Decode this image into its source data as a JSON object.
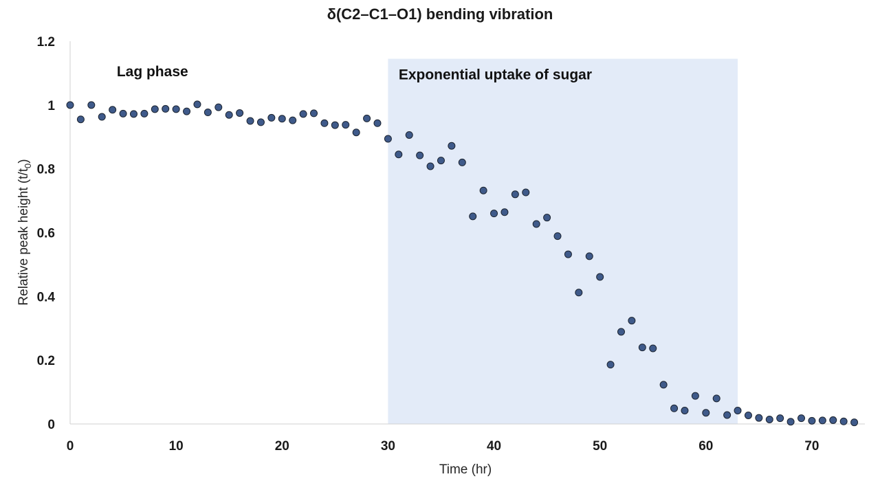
{
  "chart_data": {
    "type": "scatter",
    "title": "δ(C2–C1–O1) bending vibration",
    "xlabel": "Time (hr)",
    "ylabel": "Relative peak height (t/t",
    "ylabel_sub": "0",
    "ylabel_close": ")",
    "xlim": [
      0,
      75
    ],
    "ylim": [
      0,
      1.2
    ],
    "x_ticks": [
      0,
      10,
      20,
      30,
      40,
      50,
      60,
      70
    ],
    "y_ticks": [
      0,
      0.2,
      0.4,
      0.6,
      0.8,
      1,
      1.2
    ],
    "y_tick_labels": [
      "0",
      "0.2",
      "0.4",
      "0.6",
      "0.8",
      "1",
      "1.2"
    ],
    "grid": false,
    "legend": "none",
    "marker_color": "#3f5a8a",
    "annotations": [
      {
        "text": "Lag phase",
        "x": 4.4,
        "y": 1.09
      },
      {
        "text": "Exponential uptake of sugar",
        "x": 31.0,
        "y": 1.08
      }
    ],
    "shaded_region": {
      "x_start": 30,
      "x_end": 63,
      "y_top": 1.145,
      "color": "#e3ebf8"
    },
    "series": [
      {
        "name": "δ(C2–C1–O1)",
        "x": [
          0,
          1,
          2,
          3,
          4,
          5,
          6,
          7,
          8,
          9,
          10,
          11,
          12,
          13,
          14,
          15,
          16,
          17,
          18,
          19,
          20,
          21,
          22,
          23,
          24,
          25,
          26,
          27,
          28,
          29,
          30,
          31,
          32,
          33,
          34,
          35,
          36,
          37,
          38,
          39,
          40,
          41,
          42,
          43,
          44,
          45,
          46,
          47,
          48,
          49,
          50,
          51,
          52,
          53,
          54,
          55,
          56,
          57,
          58,
          59,
          60,
          61,
          62,
          63,
          64,
          65,
          66,
          67,
          68,
          69,
          70,
          71,
          72,
          73,
          74
        ],
        "y": [
          1.0,
          0.955,
          1.0,
          0.963,
          0.985,
          0.973,
          0.972,
          0.973,
          0.987,
          0.988,
          0.987,
          0.98,
          1.002,
          0.977,
          0.993,
          0.969,
          0.975,
          0.95,
          0.946,
          0.96,
          0.957,
          0.952,
          0.972,
          0.974,
          0.943,
          0.937,
          0.938,
          0.914,
          0.958,
          0.943,
          0.894,
          0.845,
          0.906,
          0.842,
          0.808,
          0.826,
          0.872,
          0.82,
          0.651,
          0.732,
          0.66,
          0.664,
          0.72,
          0.726,
          0.627,
          0.647,
          0.589,
          0.532,
          0.412,
          0.526,
          0.461,
          0.186,
          0.289,
          0.324,
          0.24,
          0.237,
          0.123,
          0.049,
          0.042,
          0.088,
          0.035,
          0.08,
          0.028,
          0.042,
          0.027,
          0.019,
          0.014,
          0.018,
          0.007,
          0.018,
          0.01,
          0.011,
          0.012,
          0.008,
          0.005
        ]
      }
    ]
  }
}
